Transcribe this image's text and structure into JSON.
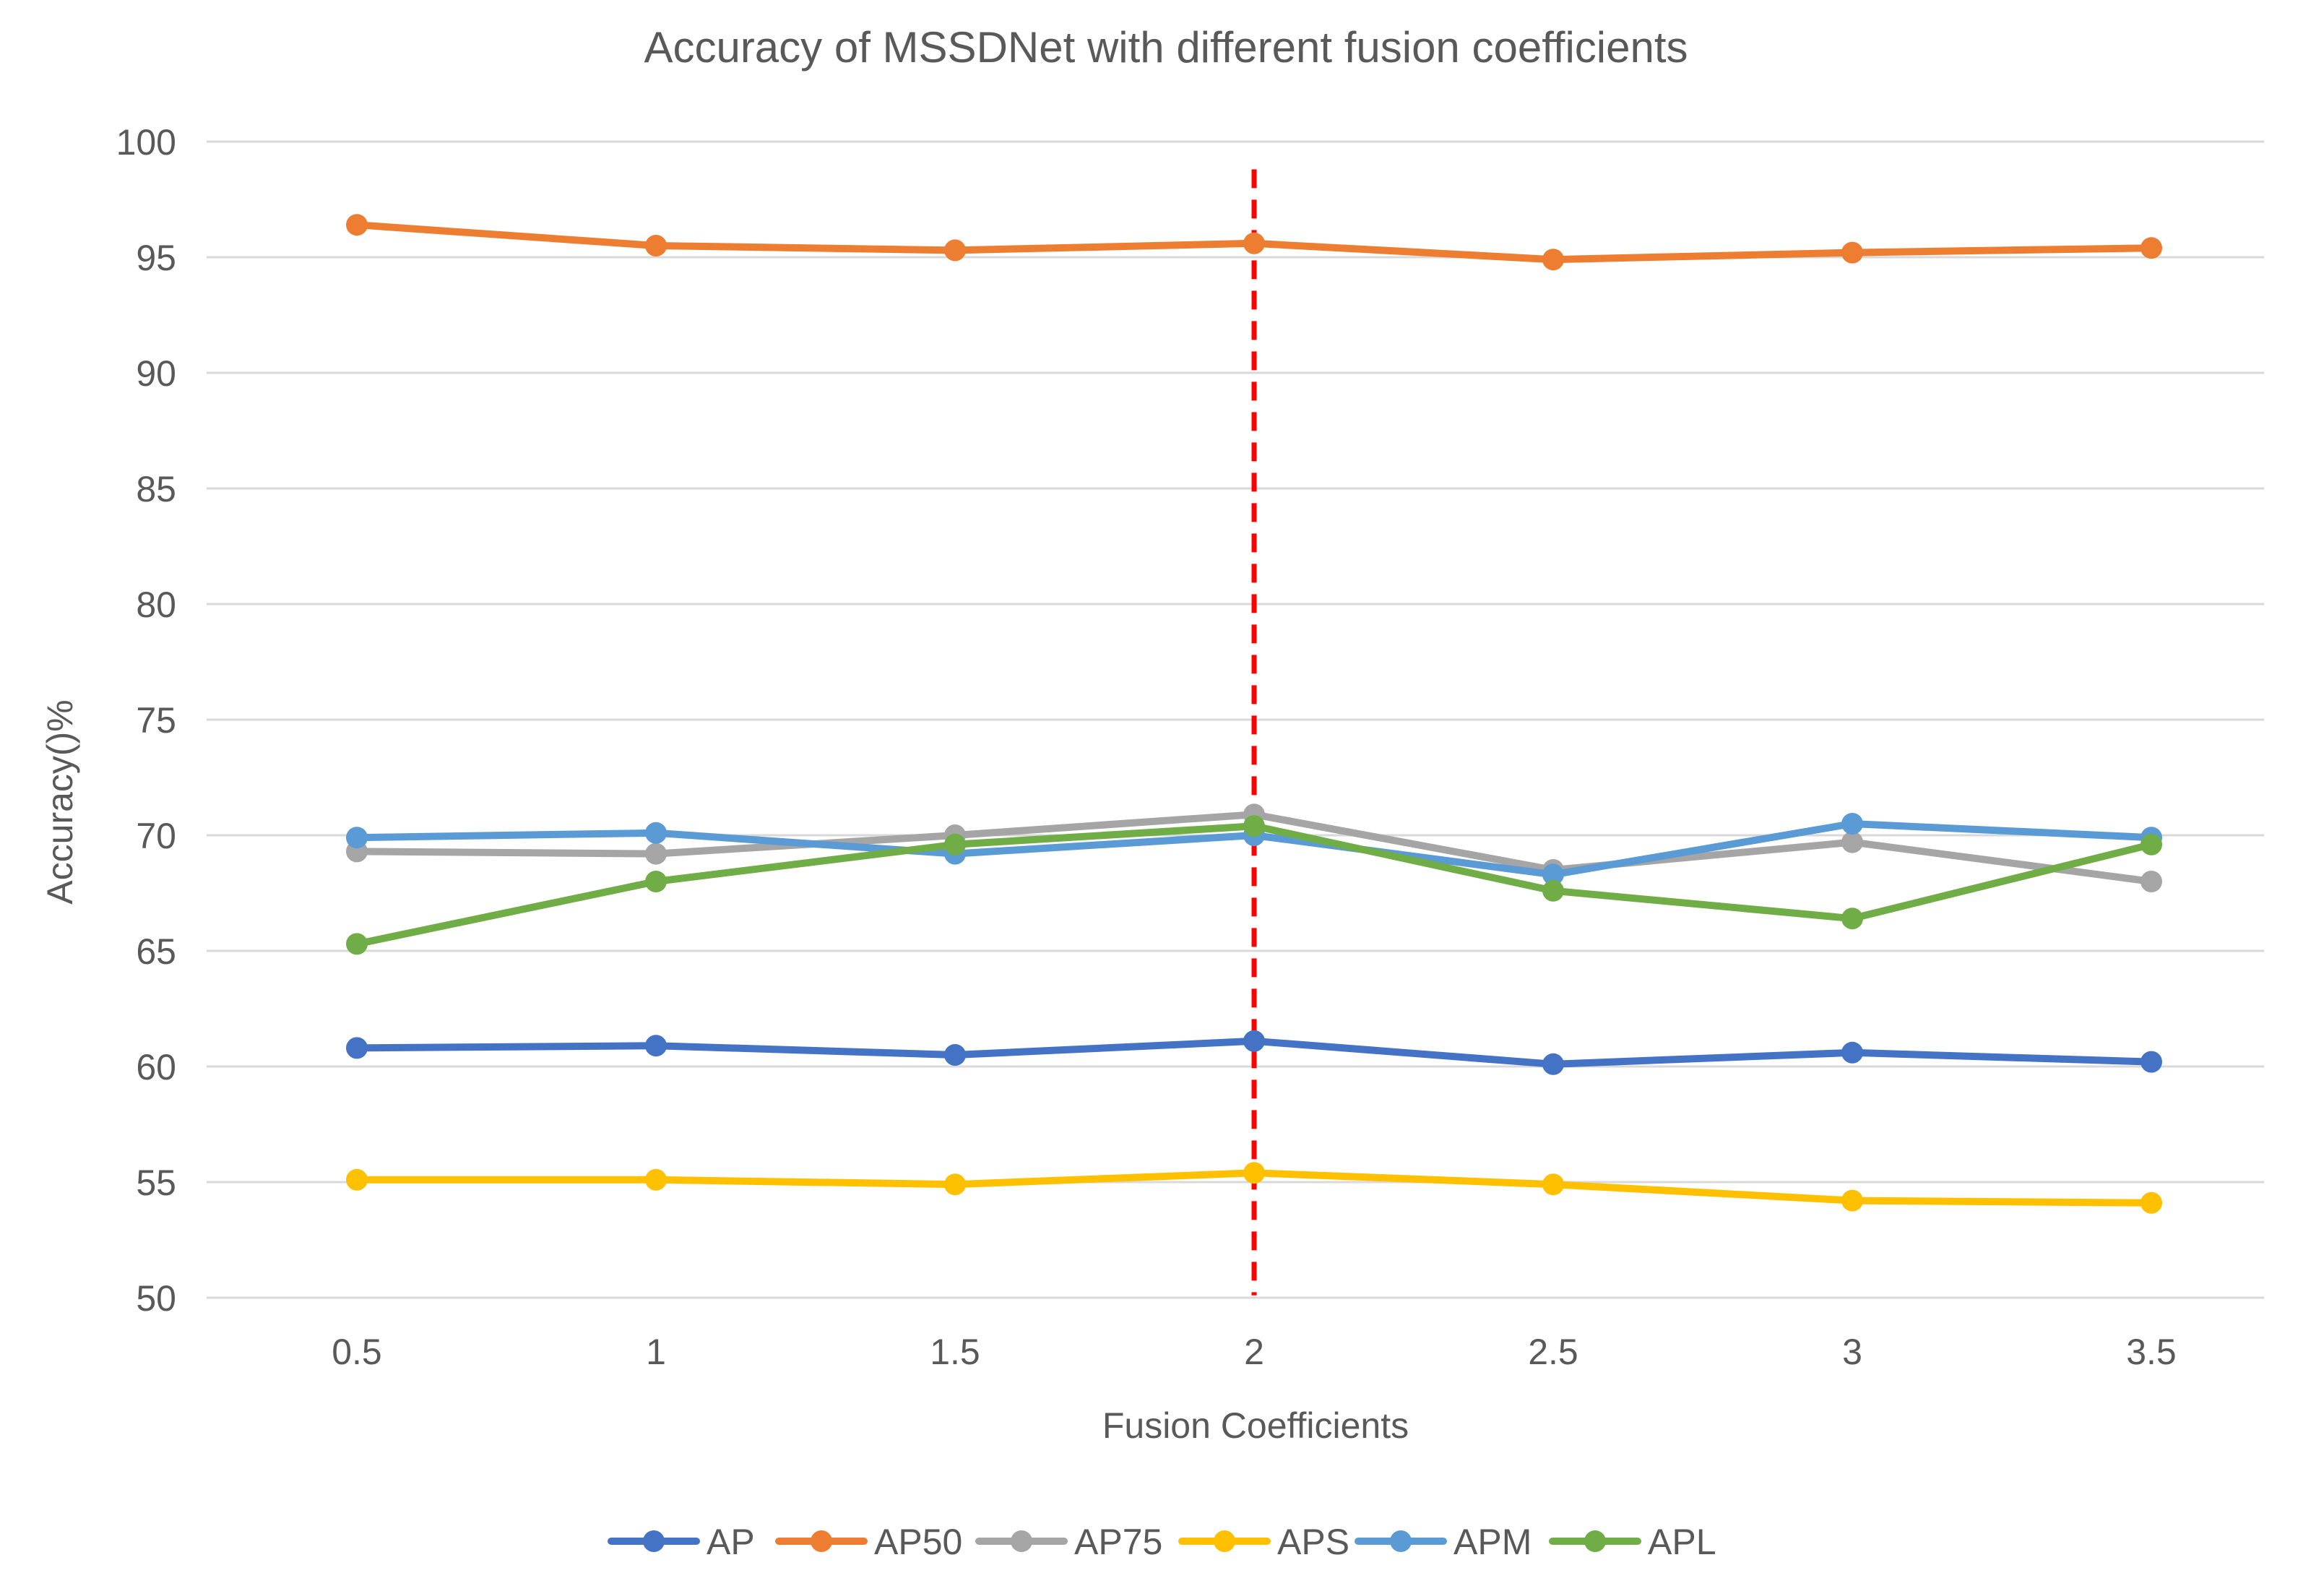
{
  "chart_data": {
    "type": "line",
    "title": "Accuracy of MSSDNet with different fusion coefficients",
    "xlabel": "Fusion Coefficients",
    "ylabel": "Accuracy()%",
    "categories": [
      "0.5",
      "1",
      "1.5",
      "2",
      "2.5",
      "3",
      "3.5"
    ],
    "ylim": [
      50,
      100
    ],
    "yticks": [
      50,
      55,
      60,
      65,
      70,
      75,
      80,
      85,
      90,
      95,
      100
    ],
    "grid": true,
    "legend_position": "bottom",
    "annotations": [
      {
        "type": "vertical-dashed-line",
        "x": "2",
        "color": "#ff0000",
        "y_range": [
          50.1,
          98.8
        ]
      }
    ],
    "series": [
      {
        "name": "AP",
        "color": "#4472C4",
        "values": [
          60.8,
          60.9,
          60.5,
          61.1,
          60.1,
          60.6,
          60.2
        ]
      },
      {
        "name": "AP50",
        "color": "#ED7D31",
        "values": [
          96.4,
          95.5,
          95.3,
          95.6,
          94.9,
          95.2,
          95.4
        ]
      },
      {
        "name": "AP75",
        "color": "#A5A5A5",
        "values": [
          69.3,
          69.2,
          70.0,
          70.9,
          68.5,
          69.7,
          68.0
        ]
      },
      {
        "name": "APS",
        "color": "#FFC000",
        "values": [
          55.1,
          55.1,
          54.9,
          55.4,
          54.9,
          54.2,
          54.1
        ]
      },
      {
        "name": "APM",
        "color": "#5B9BD5",
        "values": [
          69.9,
          70.1,
          69.2,
          70.0,
          68.3,
          70.5,
          69.9
        ]
      },
      {
        "name": "APL",
        "color": "#70AD47",
        "values": [
          65.3,
          68.0,
          69.6,
          70.4,
          67.6,
          66.4,
          69.6
        ]
      }
    ]
  }
}
